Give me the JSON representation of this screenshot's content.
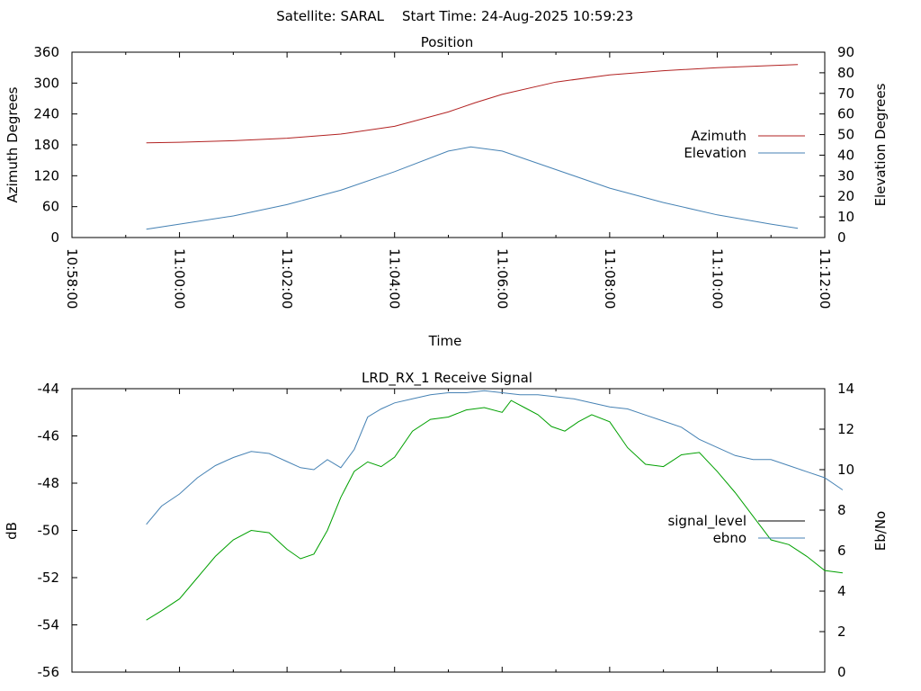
{
  "header": {
    "satellite": "Satellite: SARAL",
    "start_time": "Start Time: 24-Aug-2025 10:59:23"
  },
  "chart_data": [
    {
      "type": "line",
      "title": "Position",
      "xlabel": "Time",
      "ylabel": "Azimuth Degrees",
      "y2label": "Elevation Degrees",
      "xlim": [
        "10:58:00",
        "11:12:00"
      ],
      "xticks": [
        "10:58:00",
        "11:00:00",
        "11:02:00",
        "11:04:00",
        "11:06:00",
        "11:08:00",
        "11:10:00",
        "11:12:00"
      ],
      "ylim": [
        0,
        360
      ],
      "yticks": [
        0,
        60,
        120,
        180,
        240,
        300,
        360
      ],
      "y2lim": [
        0,
        90
      ],
      "y2ticks": [
        0,
        10,
        20,
        30,
        40,
        50,
        60,
        70,
        80,
        90
      ],
      "legend_position": "right",
      "series": [
        {
          "name": "Azimuth",
          "axis": "y",
          "color": "#b22222",
          "points": [
            [
              "10:59:23",
              184
            ],
            [
              "11:00:00",
              185
            ],
            [
              "11:01:00",
              188
            ],
            [
              "11:02:00",
              193
            ],
            [
              "11:03:00",
              201
            ],
            [
              "11:04:00",
              216
            ],
            [
              "11:05:00",
              244
            ],
            [
              "11:05:30",
              262
            ],
            [
              "11:06:00",
              278
            ],
            [
              "11:07:00",
              302
            ],
            [
              "11:08:00",
              316
            ],
            [
              "11:09:00",
              324
            ],
            [
              "11:10:00",
              330
            ],
            [
              "11:11:00",
              334
            ],
            [
              "11:11:30",
              336
            ]
          ]
        },
        {
          "name": "Elevation",
          "axis": "y2",
          "color": "#4682b4",
          "points": [
            [
              "10:59:23",
              4
            ],
            [
              "11:00:00",
              6.5
            ],
            [
              "11:01:00",
              10.5
            ],
            [
              "11:02:00",
              16
            ],
            [
              "11:03:00",
              23
            ],
            [
              "11:04:00",
              32
            ],
            [
              "11:05:00",
              42
            ],
            [
              "11:05:25",
              44
            ],
            [
              "11:06:00",
              42
            ],
            [
              "11:07:00",
              33
            ],
            [
              "11:08:00",
              24
            ],
            [
              "11:09:00",
              17
            ],
            [
              "11:10:00",
              11
            ],
            [
              "11:11:00",
              6.5
            ],
            [
              "11:11:30",
              4.5
            ]
          ]
        }
      ]
    },
    {
      "type": "line",
      "title": "LRD_RX_1 Receive Signal",
      "xlabel": "",
      "ylabel": "dB",
      "y2label": "Eb/No",
      "xlim": [
        "10:58:00",
        "11:12:00"
      ],
      "ylim": [
        -56,
        -44
      ],
      "yticks": [
        -56,
        -54,
        -52,
        -50,
        -48,
        -46,
        -44
      ],
      "y2lim": [
        0,
        14
      ],
      "y2ticks": [
        0,
        2,
        4,
        6,
        8,
        10,
        12,
        14
      ],
      "legend_position": "right",
      "series": [
        {
          "name": "signal_level",
          "axis": "y",
          "color": "#00a000",
          "legend_color": "#000000",
          "points": [
            [
              "10:59:23",
              -53.8
            ],
            [
              "10:59:40",
              -53.4
            ],
            [
              "11:00:00",
              -52.9
            ],
            [
              "11:00:20",
              -52.0
            ],
            [
              "11:00:40",
              -51.1
            ],
            [
              "11:01:00",
              -50.4
            ],
            [
              "11:01:20",
              -50.0
            ],
            [
              "11:01:40",
              -50.1
            ],
            [
              "11:02:00",
              -50.8
            ],
            [
              "11:02:15",
              -51.2
            ],
            [
              "11:02:30",
              -51.0
            ],
            [
              "11:02:45",
              -50.0
            ],
            [
              "11:03:00",
              -48.6
            ],
            [
              "11:03:15",
              -47.5
            ],
            [
              "11:03:30",
              -47.1
            ],
            [
              "11:03:45",
              -47.3
            ],
            [
              "11:04:00",
              -46.9
            ],
            [
              "11:04:20",
              -45.8
            ],
            [
              "11:04:40",
              -45.3
            ],
            [
              "11:05:00",
              -45.2
            ],
            [
              "11:05:20",
              -44.9
            ],
            [
              "11:05:40",
              -44.8
            ],
            [
              "11:06:00",
              -45.0
            ],
            [
              "11:06:10",
              -44.5
            ],
            [
              "11:06:25",
              -44.8
            ],
            [
              "11:06:40",
              -45.1
            ],
            [
              "11:06:55",
              -45.6
            ],
            [
              "11:07:10",
              -45.8
            ],
            [
              "11:07:25",
              -45.4
            ],
            [
              "11:07:40",
              -45.1
            ],
            [
              "11:08:00",
              -45.4
            ],
            [
              "11:08:20",
              -46.5
            ],
            [
              "11:08:40",
              -47.2
            ],
            [
              "11:09:00",
              -47.3
            ],
            [
              "11:09:20",
              -46.8
            ],
            [
              "11:09:40",
              -46.7
            ],
            [
              "11:10:00",
              -47.5
            ],
            [
              "11:10:20",
              -48.4
            ],
            [
              "11:10:40",
              -49.4
            ],
            [
              "11:11:00",
              -50.4
            ],
            [
              "11:11:20",
              -50.6
            ],
            [
              "11:11:40",
              -51.1
            ],
            [
              "11:12:00",
              -51.7
            ],
            [
              "11:12:20",
              -51.8
            ]
          ]
        },
        {
          "name": "ebno",
          "axis": "y2",
          "color": "#4682b4",
          "points": [
            [
              "10:59:23",
              7.3
            ],
            [
              "10:59:40",
              8.2
            ],
            [
              "11:00:00",
              8.8
            ],
            [
              "11:00:20",
              9.6
            ],
            [
              "11:00:40",
              10.2
            ],
            [
              "11:01:00",
              10.6
            ],
            [
              "11:01:20",
              10.9
            ],
            [
              "11:01:40",
              10.8
            ],
            [
              "11:02:00",
              10.4
            ],
            [
              "11:02:15",
              10.1
            ],
            [
              "11:02:30",
              10.0
            ],
            [
              "11:02:45",
              10.5
            ],
            [
              "11:03:00",
              10.1
            ],
            [
              "11:03:15",
              11.0
            ],
            [
              "11:03:30",
              12.6
            ],
            [
              "11:03:45",
              13.0
            ],
            [
              "11:04:00",
              13.3
            ],
            [
              "11:04:20",
              13.5
            ],
            [
              "11:04:40",
              13.7
            ],
            [
              "11:05:00",
              13.8
            ],
            [
              "11:05:20",
              13.8
            ],
            [
              "11:05:40",
              13.9
            ],
            [
              "11:06:00",
              13.8
            ],
            [
              "11:06:20",
              13.7
            ],
            [
              "11:06:40",
              13.7
            ],
            [
              "11:07:00",
              13.6
            ],
            [
              "11:07:20",
              13.5
            ],
            [
              "11:07:40",
              13.3
            ],
            [
              "11:08:00",
              13.1
            ],
            [
              "11:08:20",
              13.0
            ],
            [
              "11:08:40",
              12.7
            ],
            [
              "11:09:00",
              12.4
            ],
            [
              "11:09:20",
              12.1
            ],
            [
              "11:09:40",
              11.5
            ],
            [
              "11:10:00",
              11.1
            ],
            [
              "11:10:20",
              10.7
            ],
            [
              "11:10:40",
              10.5
            ],
            [
              "11:11:00",
              10.5
            ],
            [
              "11:11:20",
              10.2
            ],
            [
              "11:11:40",
              9.9
            ],
            [
              "11:12:00",
              9.6
            ],
            [
              "11:12:20",
              9.0
            ]
          ]
        }
      ]
    }
  ]
}
